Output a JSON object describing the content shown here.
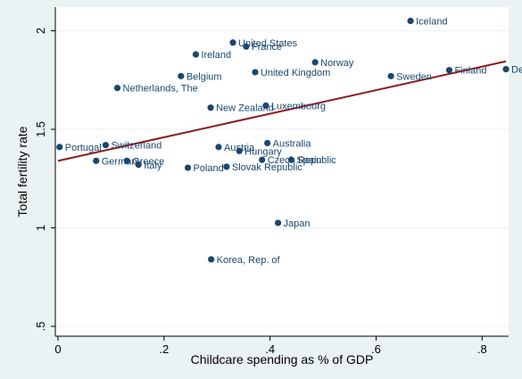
{
  "chart_data": {
    "type": "scatter",
    "title": "",
    "xlabel": "Childcare spending as % of GDP",
    "ylabel": "Total fertility rate",
    "xlim": [
      -0.005,
      0.85
    ],
    "ylim": [
      0.45,
      2.12
    ],
    "xticks": [
      0,
      0.2,
      0.4,
      0.6,
      0.8
    ],
    "xtick_labels": [
      "0",
      ".2",
      ".4",
      ".6",
      ".8"
    ],
    "yticks": [
      0.5,
      1,
      1.5,
      2
    ],
    "ytick_labels": [
      ".5",
      "1",
      "1.5",
      "2"
    ],
    "grid": "horizontal",
    "legend": "none",
    "colors": {
      "background": "#eaf2f3",
      "plot_area": "#ffffff",
      "marker": "#1a476f",
      "fit_line": "#8b1a1a",
      "grid": "#eaf2f3"
    },
    "points": [
      {
        "label": "Iceland",
        "x": 0.665,
        "y": 2.05
      },
      {
        "label": "United States",
        "x": 0.33,
        "y": 1.94
      },
      {
        "label": "France",
        "x": 0.355,
        "y": 1.92
      },
      {
        "label": "Ireland",
        "x": 0.26,
        "y": 1.88
      },
      {
        "label": "Norway",
        "x": 0.485,
        "y": 1.84
      },
      {
        "label": "Denmark",
        "x": 0.845,
        "y": 1.805
      },
      {
        "label": "Finland",
        "x": 0.738,
        "y": 1.8
      },
      {
        "label": "United Kingdom",
        "x": 0.372,
        "y": 1.79
      },
      {
        "label": "Belgium",
        "x": 0.232,
        "y": 1.77
      },
      {
        "label": "Sweden",
        "x": 0.628,
        "y": 1.77
      },
      {
        "label": "Netherlands, The",
        "x": 0.112,
        "y": 1.71
      },
      {
        "label": "Luxembourg",
        "x": 0.392,
        "y": 1.62
      },
      {
        "label": "New Zealand",
        "x": 0.288,
        "y": 1.61
      },
      {
        "label": "Australia",
        "x": 0.395,
        "y": 1.43
      },
      {
        "label": "Switzerland",
        "x": 0.09,
        "y": 1.42
      },
      {
        "label": "Portugal",
        "x": 0.003,
        "y": 1.41
      },
      {
        "label": "Austria",
        "x": 0.303,
        "y": 1.41
      },
      {
        "label": "Hungary",
        "x": 0.342,
        "y": 1.39
      },
      {
        "label": "Czech Republic",
        "x": 0.385,
        "y": 1.345
      },
      {
        "label": "Spain",
        "x": 0.44,
        "y": 1.345
      },
      {
        "label": "Germany",
        "x": 0.072,
        "y": 1.34
      },
      {
        "label": "Greece",
        "x": 0.13,
        "y": 1.34
      },
      {
        "label": "Italy",
        "x": 0.152,
        "y": 1.32
      },
      {
        "label": "Slovak Republic",
        "x": 0.318,
        "y": 1.31
      },
      {
        "label": "Poland",
        "x": 0.245,
        "y": 1.305
      },
      {
        "label": "Japan",
        "x": 0.415,
        "y": 1.025
      },
      {
        "label": "Korea, Rep. of",
        "x": 0.289,
        "y": 0.84
      }
    ],
    "fit_line": {
      "x": [
        0,
        0.845
      ],
      "y": [
        1.34,
        1.845
      ]
    }
  }
}
